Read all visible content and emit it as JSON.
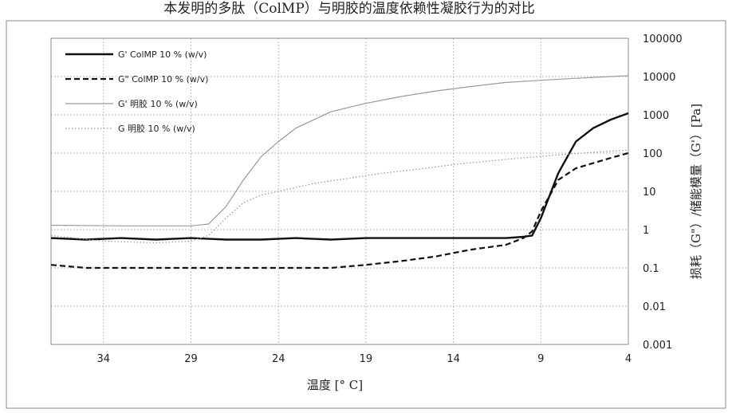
{
  "chart_data": {
    "type": "line",
    "title": "本发明的多肽（ColMP）与明胶的温度依赖性凝胶行为的对比",
    "xlabel": "温度 [° C]",
    "ylabel": "损耗（G\"）/储能模量（G'）[Pa]",
    "x_reversed": true,
    "xlim": [
      37,
      4
    ],
    "x_ticks": [
      "34",
      "29",
      "24",
      "19",
      "14",
      "9",
      "4"
    ],
    "y_scale": "log",
    "ylim": [
      0.001,
      100000
    ],
    "y_ticks": [
      "0.001",
      "0.01",
      "0.1",
      "1",
      "10",
      "100",
      "1000",
      "10000",
      "100000"
    ],
    "grid": true,
    "legend_position": "top-left",
    "series": [
      {
        "name": "G'  ColMP 10 % (w/v)",
        "style": "solid-thick",
        "color": "#111111",
        "x": [
          37,
          35,
          33,
          31,
          29,
          27,
          25,
          23,
          21,
          19,
          17,
          15,
          13,
          11,
          10,
          9.5,
          9,
          8,
          7,
          6,
          5,
          4
        ],
        "y": [
          0.6,
          0.55,
          0.6,
          0.55,
          0.6,
          0.55,
          0.55,
          0.6,
          0.55,
          0.6,
          0.6,
          0.6,
          0.6,
          0.6,
          0.65,
          0.7,
          2,
          30,
          200,
          450,
          750,
          1100
        ]
      },
      {
        "name": "G\"  ColMP 10 % (w/v)",
        "style": "dashed-thick",
        "color": "#111111",
        "x": [
          37,
          35,
          33,
          31,
          29,
          27,
          25,
          23,
          21,
          19,
          17,
          15,
          13,
          11,
          10,
          9.5,
          9,
          8,
          7,
          6,
          5,
          4
        ],
        "y": [
          0.12,
          0.1,
          0.1,
          0.1,
          0.1,
          0.1,
          0.1,
          0.1,
          0.1,
          0.12,
          0.15,
          0.2,
          0.3,
          0.4,
          0.6,
          0.9,
          3,
          20,
          40,
          55,
          75,
          100
        ]
      },
      {
        "name": "G'  明胶  10 % (w/v)",
        "style": "solid-thin",
        "color": "#9a9a9a",
        "x": [
          37,
          33,
          29,
          28,
          27,
          26,
          25,
          24,
          23,
          21,
          19,
          17,
          15,
          13,
          11,
          9,
          7,
          5,
          4
        ],
        "y": [
          1.3,
          1.25,
          1.25,
          1.4,
          4,
          20,
          80,
          200,
          450,
          1200,
          2000,
          3000,
          4200,
          5500,
          7000,
          8000,
          9000,
          10000,
          10500
        ]
      },
      {
        "name": "G  明胶  10 % (w/v)",
        "style": "dotted",
        "color": "#9a9a9a",
        "x": [
          37,
          34,
          31,
          29,
          28,
          27,
          26,
          25,
          24,
          22,
          20,
          18,
          16,
          14,
          12,
          10,
          8,
          6,
          4
        ],
        "y": [
          0.7,
          0.5,
          0.45,
          0.5,
          0.7,
          2,
          5,
          8,
          10,
          16,
          22,
          30,
          38,
          50,
          62,
          75,
          90,
          105,
          120
        ]
      }
    ]
  }
}
